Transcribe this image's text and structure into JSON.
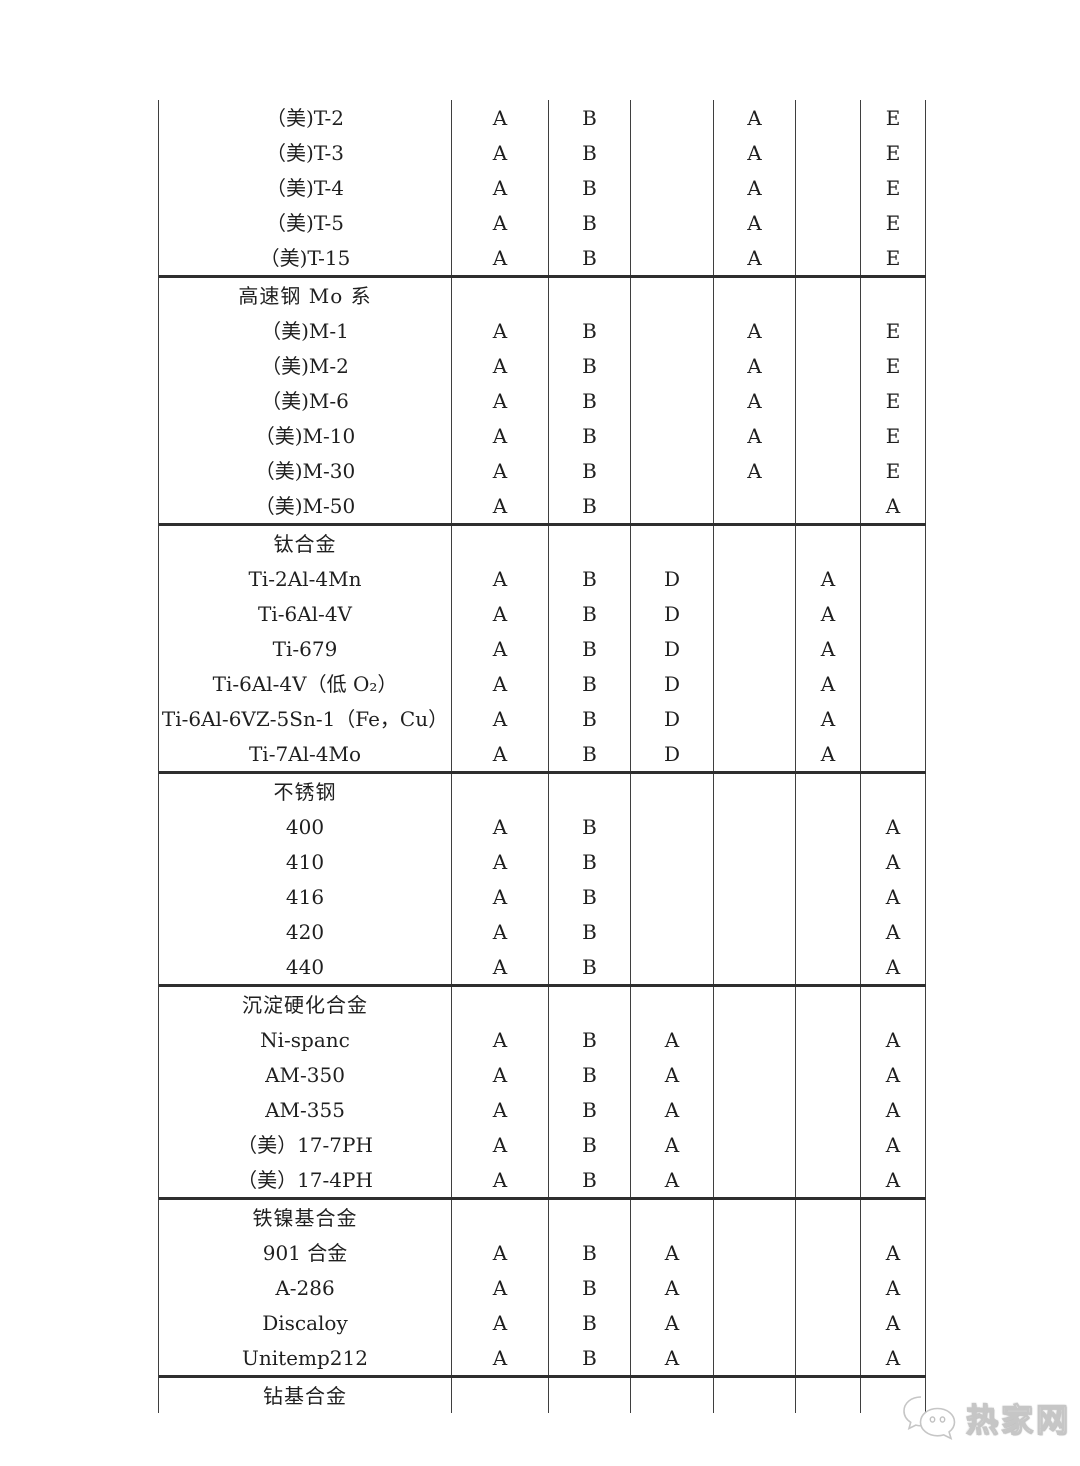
{
  "table": {
    "description_columns": 7,
    "sections": [
      {
        "header": null,
        "rows": [
          {
            "name": "（美)T-2",
            "values": [
              "A",
              "B",
              "",
              "A",
              "",
              "E"
            ]
          },
          {
            "name": "（美)T-3",
            "values": [
              "A",
              "B",
              "",
              "A",
              "",
              "E"
            ]
          },
          {
            "name": "（美)T-4",
            "values": [
              "A",
              "B",
              "",
              "A",
              "",
              "E"
            ]
          },
          {
            "name": "（美)T-5",
            "values": [
              "A",
              "B",
              "",
              "A",
              "",
              "E"
            ]
          },
          {
            "name": "（美)T-15",
            "values": [
              "A",
              "B",
              "",
              "A",
              "",
              "E"
            ]
          }
        ]
      },
      {
        "header": "高速钢 Mo 系",
        "rows": [
          {
            "name": "（美)M-1",
            "values": [
              "A",
              "B",
              "",
              "A",
              "",
              "E"
            ]
          },
          {
            "name": "（美)M-2",
            "values": [
              "A",
              "B",
              "",
              "A",
              "",
              "E"
            ]
          },
          {
            "name": "（美)M-6",
            "values": [
              "A",
              "B",
              "",
              "A",
              "",
              "E"
            ]
          },
          {
            "name": "（美)M-10",
            "values": [
              "A",
              "B",
              "",
              "A",
              "",
              "E"
            ]
          },
          {
            "name": "（美)M-30",
            "values": [
              "A",
              "B",
              "",
              "A",
              "",
              "E"
            ]
          },
          {
            "name": "（美)M-50",
            "values": [
              "A",
              "B",
              "",
              "",
              "",
              "A"
            ]
          }
        ]
      },
      {
        "header": "钛合金",
        "rows": [
          {
            "name": "Ti-2Al-4Mn",
            "values": [
              "A",
              "B",
              "D",
              "",
              "A",
              ""
            ]
          },
          {
            "name": "Ti-6Al-4V",
            "values": [
              "A",
              "B",
              "D",
              "",
              "A",
              ""
            ]
          },
          {
            "name": "Ti-679",
            "values": [
              "A",
              "B",
              "D",
              "",
              "A",
              ""
            ]
          },
          {
            "name": "Ti-6Al-4V（低 O₂）",
            "values": [
              "A",
              "B",
              "D",
              "",
              "A",
              ""
            ]
          },
          {
            "name": "Ti-6Al-6VZ-5Sn-1（Fe，Cu）",
            "values": [
              "A",
              "B",
              "D",
              "",
              "A",
              ""
            ]
          },
          {
            "name": "Ti-7Al-4Mo",
            "values": [
              "A",
              "B",
              "D",
              "",
              "A",
              ""
            ]
          }
        ]
      },
      {
        "header": "不锈钢",
        "rows": [
          {
            "name": "400",
            "values": [
              "A",
              "B",
              "",
              "",
              "",
              "A"
            ]
          },
          {
            "name": "410",
            "values": [
              "A",
              "B",
              "",
              "",
              "",
              "A"
            ]
          },
          {
            "name": "416",
            "values": [
              "A",
              "B",
              "",
              "",
              "",
              "A"
            ]
          },
          {
            "name": "420",
            "values": [
              "A",
              "B",
              "",
              "",
              "",
              "A"
            ]
          },
          {
            "name": "440",
            "values": [
              "A",
              "B",
              "",
              "",
              "",
              "A"
            ]
          }
        ]
      },
      {
        "header": "沉淀硬化合金",
        "rows": [
          {
            "name": "Ni-spanc",
            "values": [
              "A",
              "B",
              "A",
              "",
              "",
              "A"
            ]
          },
          {
            "name": "AM-350",
            "values": [
              "A",
              "B",
              "A",
              "",
              "",
              "A"
            ]
          },
          {
            "name": "AM-355",
            "values": [
              "A",
              "B",
              "A",
              "",
              "",
              "A"
            ]
          },
          {
            "name": "（美）17-7PH",
            "values": [
              "A",
              "B",
              "A",
              "",
              "",
              "A"
            ]
          },
          {
            "name": "（美）17-4PH",
            "values": [
              "A",
              "B",
              "A",
              "",
              "",
              "A"
            ]
          }
        ]
      },
      {
        "header": "铁镍基合金",
        "rows": [
          {
            "name": "901 合金",
            "values": [
              "A",
              "B",
              "A",
              "",
              "",
              "A"
            ]
          },
          {
            "name": "A-286",
            "values": [
              "A",
              "B",
              "A",
              "",
              "",
              "A"
            ]
          },
          {
            "name": "Discaloy",
            "values": [
              "A",
              "B",
              "A",
              "",
              "",
              "A"
            ]
          },
          {
            "name": "Unitemp212",
            "values": [
              "A",
              "B",
              "A",
              "",
              "",
              "A"
            ]
          }
        ]
      },
      {
        "header": "钻基合金",
        "rows": []
      }
    ]
  },
  "watermark": {
    "text": "热家网",
    "icon": "chat-bubbles-icon",
    "emboss_color": "#c6c6c6"
  }
}
